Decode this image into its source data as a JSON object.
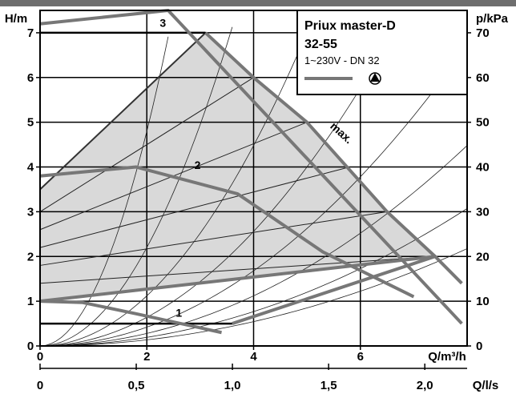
{
  "chart_data": {
    "type": "line",
    "title": "Priux master-D",
    "subtitle": "32-55",
    "spec": "1~230V - DN 32",
    "x_label": "Q/m³/h",
    "x_ticks": [
      "0",
      "2",
      "4",
      "6"
    ],
    "x_range": [
      0,
      8
    ],
    "x2_label": "Q/l/s",
    "x2_ticks": [
      "0",
      "0,5",
      "1,0",
      "1,5",
      "2,0"
    ],
    "x2_range": [
      0,
      2.22
    ],
    "y_label": "H/m",
    "y_ticks": [
      "0",
      "1",
      "2",
      "3",
      "4",
      "5",
      "6",
      "7"
    ],
    "y_range": [
      0,
      7.5
    ],
    "y2_label": "p/kPa",
    "y2_ticks": [
      "0",
      "10",
      "20",
      "30",
      "40",
      "50",
      "60",
      "70"
    ],
    "y2_range": [
      0,
      75
    ],
    "grid": true,
    "legend_symbol": "pump-symbol",
    "colors": {
      "curve": "#777777",
      "fill": "#d9d9d9",
      "frame": "#000000",
      "topbar": "#6e6e6e"
    },
    "series": [
      {
        "name": "3",
        "x": [
          0,
          2.4,
          7.9
        ],
        "y": [
          7.2,
          7.5,
          0.5
        ]
      },
      {
        "name": "2",
        "x": [
          0,
          1.8,
          3.7,
          5.3,
          7.0
        ],
        "y": [
          3.8,
          4.0,
          3.4,
          2.1,
          1.1
        ]
      },
      {
        "name": "1",
        "x": [
          0,
          0.8,
          1.8,
          3.4
        ],
        "y": [
          1.0,
          0.97,
          0.72,
          0.3
        ]
      },
      {
        "name": "max.",
        "x": [
          3.1,
          4.0,
          5.0,
          6.5,
          7.4
        ],
        "y": [
          7.0,
          6.0,
          5.0,
          3.0,
          2.0
        ]
      }
    ],
    "annotations": [
      "3",
      "2",
      "1",
      "max."
    ]
  }
}
